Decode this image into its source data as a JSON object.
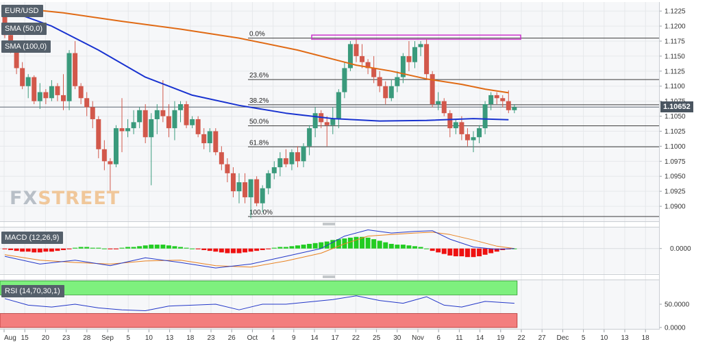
{
  "symbol": "EUR/USD",
  "logo": {
    "part1": "FX",
    "part2": "STREET"
  },
  "indicators": {
    "sma50": "SMA (50,0)",
    "sma100": "SMA (100,0)",
    "macd": "MACD (12,26,9)",
    "rsi": "RSI (14,70,30,1)"
  },
  "last_price": "1.10652",
  "colors": {
    "bull": "#3a9a7c",
    "bear": "#d2584b",
    "sma50": "#1832d0",
    "sma100": "#e06a14",
    "macd_line": "#2236c8",
    "signal_line": "#e8801e",
    "hist_pos": "#22cc22",
    "hist_neg": "#ee1111",
    "rsi_over": "#7ef07e",
    "rsi_under": "#f37e7e",
    "resistance": "#cc33cc"
  },
  "chart_data": [
    {
      "type": "candlestick",
      "title": "EUR/USD",
      "y_axis_ticks": [
        "1.1225",
        "1.1200",
        "1.1175",
        "1.1150",
        "1.1125",
        "1.1100",
        "1.1075",
        "1.1050",
        "1.1025",
        "1.1000",
        "1.0975",
        "1.0950",
        "1.0925",
        "1.0900"
      ],
      "ylim": [
        1.0875,
        1.124
      ],
      "x_tick_labels": [
        "Aug",
        "15",
        "20",
        "23",
        "28",
        "Sep",
        "5",
        "10",
        "13",
        "18",
        "23",
        "26",
        "Oct",
        "4",
        "9",
        "14",
        "17",
        "22",
        "25",
        "30",
        "Nov",
        "6",
        "11",
        "14",
        "19",
        "22",
        "27",
        "Dec",
        "5",
        "10",
        "13",
        "18"
      ],
      "fibonacci": [
        {
          "label": "0.0%",
          "value": 1.118
        },
        {
          "label": "23.6%",
          "value": 1.1111
        },
        {
          "label": "38.2%",
          "value": 1.1069
        },
        {
          "label": "50.0%",
          "value": 1.1034
        },
        {
          "label": "61.8%",
          "value": 1.0999
        },
        {
          "label": "100.0%",
          "value": 1.0883
        }
      ],
      "resistance_zone": [
        1.1178,
        1.1185
      ],
      "current_price": 1.10652,
      "ohlc": [
        [
          1.123,
          1.1232,
          1.118,
          1.1185
        ],
        [
          1.1185,
          1.1195,
          1.1155,
          1.116
        ],
        [
          1.116,
          1.117,
          1.112,
          1.113
        ],
        [
          1.113,
          1.114,
          1.1095,
          1.11
        ],
        [
          1.11,
          1.112,
          1.108,
          1.1115
        ],
        [
          1.1115,
          1.1118,
          1.107,
          1.1075
        ],
        [
          1.1075,
          1.1105,
          1.1062,
          1.109
        ],
        [
          1.109,
          1.1095,
          1.107,
          1.108
        ],
        [
          1.108,
          1.111,
          1.1075,
          1.11
        ],
        [
          1.11,
          1.1105,
          1.1075,
          1.1085
        ],
        [
          1.1085,
          1.112,
          1.106,
          1.1075
        ],
        [
          1.1075,
          1.116,
          1.106,
          1.1155
        ],
        [
          1.1155,
          1.1175,
          1.1095,
          1.11
        ],
        [
          1.11,
          1.1105,
          1.107,
          1.108
        ],
        [
          1.108,
          1.109,
          1.105,
          1.1065
        ],
        [
          1.1065,
          1.1075,
          1.103,
          1.1045
        ],
        [
          1.1045,
          1.105,
          1.098,
          1.0995
        ],
        [
          1.0995,
          1.101,
          1.096,
          1.0975
        ],
        [
          1.0975,
          1.098,
          1.0925,
          1.097
        ],
        [
          1.097,
          1.1035,
          1.0965,
          1.103
        ],
        [
          1.103,
          1.108,
          1.099,
          1.1025
        ],
        [
          1.1025,
          1.1045,
          1.1015,
          1.103
        ],
        [
          1.103,
          1.106,
          1.102,
          1.104
        ],
        [
          1.104,
          1.1065,
          1.103,
          1.106
        ],
        [
          1.106,
          1.107,
          1.1005,
          1.1015
        ],
        [
          1.1015,
          1.1055,
          1.0935,
          1.1045
        ],
        [
          1.1045,
          1.107,
          1.102,
          1.106
        ],
        [
          1.106,
          1.111,
          1.104,
          1.105
        ],
        [
          1.105,
          1.107,
          1.1015,
          1.103
        ],
        [
          1.103,
          1.1075,
          1.101,
          1.106
        ],
        [
          1.106,
          1.1075,
          1.104,
          1.107
        ],
        [
          1.107,
          1.1075,
          1.103,
          1.1035
        ],
        [
          1.1035,
          1.105,
          1.103,
          1.1045
        ],
        [
          1.1045,
          1.105,
          1.1015,
          1.102
        ],
        [
          1.102,
          1.103,
          1.0995,
          1.1005
        ],
        [
          1.1005,
          1.103,
          1.099,
          1.1025
        ],
        [
          1.1025,
          1.103,
          1.0985,
          1.099
        ],
        [
          1.099,
          1.1,
          1.096,
          1.097
        ],
        [
          1.097,
          1.098,
          1.094,
          1.0955
        ],
        [
          1.0955,
          1.0965,
          1.0915,
          1.0925
        ],
        [
          1.0925,
          1.0955,
          1.0905,
          1.094
        ],
        [
          1.094,
          1.0955,
          1.0905,
          1.0915
        ],
        [
          1.0915,
          1.0945,
          1.088,
          1.0945
        ],
        [
          1.0945,
          1.095,
          1.09,
          1.0905
        ],
        [
          1.0905,
          1.0935,
          1.089,
          1.093
        ],
        [
          1.093,
          1.096,
          1.092,
          1.0955
        ],
        [
          1.0955,
          1.0975,
          1.0945,
          1.0965
        ],
        [
          1.0965,
          1.099,
          1.095,
          1.098
        ],
        [
          1.098,
          1.0995,
          1.0965,
          1.097
        ],
        [
          1.097,
          1.0995,
          1.096,
          1.099
        ],
        [
          1.099,
          1.1,
          1.0965,
          1.0975
        ],
        [
          1.0975,
          1.1005,
          1.0965,
          1.1
        ],
        [
          1.1,
          1.1035,
          1.0985,
          1.103
        ],
        [
          1.103,
          1.1065,
          1.1015,
          1.1055
        ],
        [
          1.1055,
          1.106,
          1.103,
          1.104
        ],
        [
          1.104,
          1.105,
          1.1,
          1.1035
        ],
        [
          1.1035,
          1.1065,
          1.102,
          1.1045
        ],
        [
          1.1045,
          1.1095,
          1.103,
          1.109
        ],
        [
          1.109,
          1.114,
          1.108,
          1.113
        ],
        [
          1.113,
          1.1175,
          1.1125,
          1.117
        ],
        [
          1.117,
          1.1178,
          1.114,
          1.115
        ],
        [
          1.115,
          1.117,
          1.113,
          1.114
        ],
        [
          1.114,
          1.1145,
          1.112,
          1.113
        ],
        [
          1.113,
          1.115,
          1.1105,
          1.1115
        ],
        [
          1.1115,
          1.1125,
          1.109,
          1.11
        ],
        [
          1.11,
          1.1108,
          1.107,
          1.108
        ],
        [
          1.108,
          1.111,
          1.1075,
          1.11
        ],
        [
          1.11,
          1.1125,
          1.109,
          1.1115
        ],
        [
          1.1115,
          1.1155,
          1.1105,
          1.115
        ],
        [
          1.115,
          1.1175,
          1.1125,
          1.114
        ],
        [
          1.114,
          1.1175,
          1.113,
          1.1165
        ],
        [
          1.1165,
          1.1175,
          1.115,
          1.117
        ],
        [
          1.117,
          1.1178,
          1.111,
          1.112
        ],
        [
          1.112,
          1.1125,
          1.1065,
          1.107
        ],
        [
          1.107,
          1.109,
          1.106,
          1.1075
        ],
        [
          1.1075,
          1.108,
          1.105,
          1.1055
        ],
        [
          1.1055,
          1.106,
          1.1015,
          1.103
        ],
        [
          1.103,
          1.1045,
          1.102,
          1.104
        ],
        [
          1.104,
          1.105,
          1.101,
          1.102
        ],
        [
          1.102,
          1.103,
          1.1,
          1.101
        ],
        [
          1.101,
          1.1025,
          1.099,
          1.1015
        ],
        [
          1.1015,
          1.1035,
          1.1005,
          1.103
        ],
        [
          1.103,
          1.1075,
          1.102,
          1.107
        ],
        [
          1.107,
          1.109,
          1.106,
          1.1085
        ],
        [
          1.1085,
          1.109,
          1.107,
          1.108
        ],
        [
          1.108,
          1.1085,
          1.1065,
          1.1075
        ],
        [
          1.1075,
          1.1093,
          1.1055,
          1.106
        ],
        [
          1.106,
          1.107,
          1.1055,
          1.1065
        ]
      ],
      "sma50": [
        [
          0,
          1.1228
        ],
        [
          8,
          1.12
        ],
        [
          16,
          1.116
        ],
        [
          24,
          1.1115
        ],
        [
          32,
          1.1085
        ],
        [
          40,
          1.1068
        ],
        [
          48,
          1.1055
        ],
        [
          56,
          1.1046
        ],
        [
          64,
          1.1042
        ],
        [
          72,
          1.1043
        ],
        [
          80,
          1.1046
        ],
        [
          86,
          1.1044
        ]
      ],
      "sma100": [
        [
          0,
          1.1232
        ],
        [
          10,
          1.1222
        ],
        [
          20,
          1.1208
        ],
        [
          30,
          1.1195
        ],
        [
          40,
          1.118
        ],
        [
          50,
          1.116
        ],
        [
          60,
          1.1135
        ],
        [
          66,
          1.1125
        ],
        [
          72,
          1.1112
        ],
        [
          78,
          1.1103
        ],
        [
          82,
          1.1095
        ],
        [
          86,
          1.1089
        ]
      ]
    },
    {
      "type": "histogram",
      "title": "MACD (12,26,9)",
      "y_axis_ticks": [
        "0.0000"
      ],
      "ylim": [
        -0.0032,
        0.0028
      ],
      "histogram": [
        -0.0001,
        -0.0002,
        -0.0003,
        -0.0004,
        -0.0004,
        -0.0005,
        -0.0005,
        -0.0004,
        -0.0004,
        -0.0003,
        -0.0002,
        -0.0001,
        0.0001,
        0.0002,
        0.0002,
        0.0001,
        0.0001,
        0.0,
        -0.0001,
        -0.0001,
        0.0001,
        0.0002,
        0.0002,
        0.0003,
        0.0004,
        0.0005,
        0.0005,
        0.0005,
        0.0004,
        0.0003,
        0.0002,
        0.0001,
        0.0,
        -0.0001,
        -0.0002,
        -0.0003,
        -0.0004,
        -0.0005,
        -0.0006,
        -0.0006,
        -0.0006,
        -0.0005,
        -0.0004,
        -0.0003,
        -0.0002,
        -0.0001,
        0.0001,
        0.0002,
        0.0002,
        0.0003,
        0.0004,
        0.0005,
        0.0006,
        0.0007,
        0.0008,
        0.0009,
        0.0011,
        0.0012,
        0.0013,
        0.0014,
        0.0015,
        0.0015,
        0.0014,
        0.0012,
        0.001,
        0.0008,
        0.0006,
        0.0005,
        0.0005,
        0.0004,
        0.0003,
        0.0002,
        0.0,
        -0.0003,
        -0.0005,
        -0.0007,
        -0.0009,
        -0.001,
        -0.001,
        -0.0011,
        -0.0011,
        -0.001,
        -0.0008,
        -0.0006,
        -0.0004,
        -0.0002,
        -0.0001,
        0.0
      ],
      "macd_line": [
        [
          0,
          -0.001
        ],
        [
          6,
          -0.002
        ],
        [
          12,
          -0.0015
        ],
        [
          18,
          -0.0022
        ],
        [
          24,
          -0.0012
        ],
        [
          30,
          -0.0018
        ],
        [
          36,
          -0.0025
        ],
        [
          42,
          -0.002
        ],
        [
          48,
          -0.001
        ],
        [
          54,
          0.0
        ],
        [
          58,
          0.0016
        ],
        [
          62,
          0.0024
        ],
        [
          66,
          0.002
        ],
        [
          70,
          0.0022
        ],
        [
          73,
          0.0023
        ],
        [
          76,
          0.0012
        ],
        [
          80,
          0.0002
        ],
        [
          84,
          -0.0001
        ],
        [
          87,
          0.0
        ]
      ],
      "signal_line": [
        [
          0,
          -0.0008
        ],
        [
          6,
          -0.0015
        ],
        [
          12,
          -0.0018
        ],
        [
          18,
          -0.002
        ],
        [
          24,
          -0.0016
        ],
        [
          30,
          -0.0015
        ],
        [
          36,
          -0.0022
        ],
        [
          42,
          -0.0024
        ],
        [
          48,
          -0.0016
        ],
        [
          54,
          -0.0006
        ],
        [
          58,
          0.0006
        ],
        [
          62,
          0.0016
        ],
        [
          66,
          0.0018
        ],
        [
          70,
          0.002
        ],
        [
          73,
          0.0021
        ],
        [
          76,
          0.0018
        ],
        [
          80,
          0.0011
        ],
        [
          84,
          0.0003
        ],
        [
          87,
          0.0
        ]
      ]
    },
    {
      "type": "line",
      "title": "RSI (14,70,30,1)",
      "y_axis_ticks": [
        "50.0000",
        "0.0000"
      ],
      "ylim": [
        0,
        100
      ],
      "overbought": 70,
      "oversold": 30,
      "rsi": [
        [
          0,
          62
        ],
        [
          4,
          48
        ],
        [
          8,
          44
        ],
        [
          12,
          50
        ],
        [
          16,
          42
        ],
        [
          20,
          38
        ],
        [
          24,
          36
        ],
        [
          28,
          46
        ],
        [
          32,
          48
        ],
        [
          36,
          50
        ],
        [
          40,
          38
        ],
        [
          44,
          50
        ],
        [
          48,
          50
        ],
        [
          52,
          55
        ],
        [
          56,
          60
        ],
        [
          60,
          68
        ],
        [
          64,
          58
        ],
        [
          68,
          52
        ],
        [
          72,
          66
        ],
        [
          75,
          48
        ],
        [
          78,
          44
        ],
        [
          82,
          56
        ],
        [
          87,
          52
        ]
      ]
    }
  ]
}
